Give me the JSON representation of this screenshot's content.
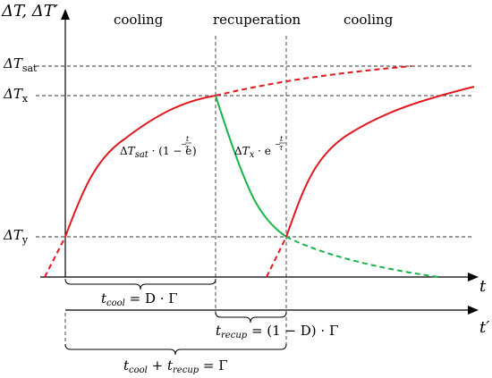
{
  "axes": {
    "y_label": "ΔT, ΔT′",
    "x_label_t": "t",
    "x_label_t_prime": "t′"
  },
  "phases": {
    "cooling_1": "cooling",
    "recuperation": "recuperation",
    "cooling_2": "cooling"
  },
  "levels": {
    "sat": {
      "base": "ΔT",
      "sub": "sat"
    },
    "x": {
      "base": "ΔT",
      "sub": "x"
    },
    "y": {
      "base": "ΔT",
      "sub": "y"
    }
  },
  "formulas": {
    "cooling_curve": {
      "prefix": "Δ",
      "T": "T",
      "sub": "sat",
      "body": " · (1 − e",
      "exp": "−",
      "t": "t",
      "tau": "τ",
      "close": ")"
    },
    "recup_curve": {
      "prefix": "Δ",
      "T": "T",
      "sub": "x",
      "body": " · e",
      "exp": "−",
      "t": "t",
      "tau": "τ"
    },
    "t_cool": {
      "t": "t",
      "sub": "cool",
      "rest": " = D · Γ"
    },
    "t_recup": {
      "t": "t",
      "sub": "recup",
      "rest": " = (1 − D) · Γ"
    },
    "period": {
      "t1": "t",
      "sub1": "cool",
      "plus": " + ",
      "t2": "t",
      "sub2": "recup",
      "rest": " = Γ"
    }
  }
}
